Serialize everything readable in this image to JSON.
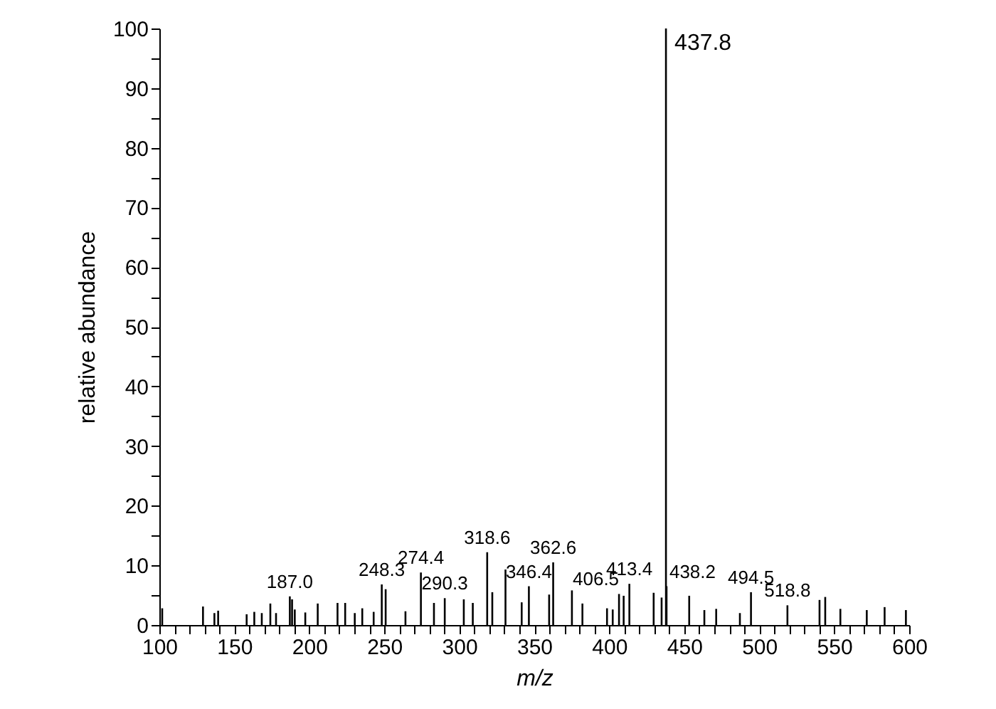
{
  "chart_data": {
    "type": "bar",
    "xlabel": "m/z",
    "ylabel": "relative abundance",
    "color": "#000000",
    "x": [
      101.9,
      129.1,
      136.7,
      139.2,
      158.2,
      163.3,
      168.3,
      174.0,
      177.8,
      187.0,
      188.5,
      190.3,
      197.3,
      205.6,
      218.8,
      223.9,
      230.3,
      235.3,
      242.9,
      248.3,
      250.9,
      264.1,
      274.4,
      283.1,
      290.3,
      303.0,
      309.0,
      318.6,
      322.0,
      330.8,
      341.6,
      346.4,
      359.9,
      362.6,
      375.1,
      382.1,
      398.5,
      402.3,
      406.5,
      409.6,
      413.4,
      429.6,
      434.9,
      437.8,
      438.2,
      453.3,
      463.4,
      471.3,
      487.1,
      494.5,
      518.8,
      540.2,
      544.0,
      554.1,
      571.7,
      583.6,
      597.8
    ],
    "values": [
      2.8,
      3.1,
      2.0,
      2.4,
      1.8,
      2.2,
      2.0,
      3.6,
      2.0,
      4.8,
      4.3,
      2.6,
      2.1,
      3.6,
      3.7,
      3.7,
      2.0,
      2.8,
      2.2,
      6.8,
      6.0,
      2.3,
      8.8,
      3.7,
      4.5,
      4.3,
      3.7,
      12.2,
      5.5,
      9.3,
      3.8,
      6.5,
      5.1,
      10.5,
      5.8,
      3.6,
      2.8,
      2.6,
      5.2,
      4.9,
      6.9,
      5.4,
      4.6,
      100,
      6.5,
      4.9,
      2.5,
      2.7,
      2.0,
      5.5,
      3.3,
      4.2,
      4.7,
      2.7,
      2.5,
      3.0,
      2.5
    ],
    "xlim": [
      100,
      600
    ],
    "xticks": [
      100,
      {
        "value": 110,
        "label": null
      },
      {
        "value": 120,
        "label": null
      },
      {
        "value": 130,
        "label": null
      },
      {
        "value": 140,
        "label": null
      },
      150,
      {
        "value": 160,
        "label": null
      },
      {
        "value": 170,
        "label": null
      },
      {
        "value": 180,
        "label": null
      },
      {
        "value": 190,
        "label": null
      },
      200,
      {
        "value": 210,
        "label": null
      },
      {
        "value": 220,
        "label": null
      },
      {
        "value": 230,
        "label": null
      },
      {
        "value": 240,
        "label": null
      },
      250,
      {
        "value": 260,
        "label": null
      },
      {
        "value": 270,
        "label": null
      },
      {
        "value": 280,
        "label": null
      },
      {
        "value": 290,
        "label": null
      },
      300,
      {
        "value": 310,
        "label": null
      },
      {
        "value": 320,
        "label": null
      },
      {
        "value": 330,
        "label": null
      },
      {
        "value": 340,
        "label": null
      },
      350,
      {
        "value": 360,
        "label": null
      },
      {
        "value": 370,
        "label": null
      },
      {
        "value": 380,
        "label": null
      },
      {
        "value": 390,
        "label": null
      },
      400,
      {
        "value": 410,
        "label": null
      },
      {
        "value": 420,
        "label": null
      },
      {
        "value": 430,
        "label": null
      },
      {
        "value": 440,
        "label": null
      },
      450,
      {
        "value": 460,
        "label": null
      },
      {
        "value": 470,
        "label": null
      },
      {
        "value": 480,
        "label": null
      },
      {
        "value": 490,
        "label": null
      },
      500,
      {
        "value": 510,
        "label": null
      },
      {
        "value": 520,
        "label": null
      },
      {
        "value": 530,
        "label": null
      },
      {
        "value": 540,
        "label": null
      },
      550,
      {
        "value": 560,
        "label": null
      },
      {
        "value": 570,
        "label": null
      },
      {
        "value": 580,
        "label": null
      },
      {
        "value": 590,
        "label": null
      },
      600
    ],
    "ylim": [
      0,
      100
    ],
    "yticks": [
      0,
      {
        "value": 5,
        "label": null
      },
      10,
      {
        "value": 15,
        "label": null
      },
      20,
      {
        "value": 25,
        "label": null
      },
      30,
      {
        "value": 35,
        "label": null
      },
      40,
      {
        "value": 45,
        "label": null
      },
      50,
      {
        "value": 55,
        "label": null
      },
      60,
      {
        "value": 65,
        "label": null
      },
      70,
      {
        "value": 75,
        "label": null
      },
      80,
      {
        "value": 85,
        "label": null
      },
      90,
      {
        "value": 95,
        "label": null
      },
      100
    ],
    "annotations": [
      {
        "text": "187.0",
        "x": 187.0,
        "y": 4.8
      },
      {
        "text": "248.3",
        "x": 248.3,
        "y": 6.8
      },
      {
        "text": "274.4",
        "x": 274.4,
        "y": 8.8
      },
      {
        "text": "290.3",
        "x": 290.3,
        "y": 4.5
      },
      {
        "text": "318.6",
        "x": 318.6,
        "y": 12.2
      },
      {
        "text": "346.4",
        "x": 346.4,
        "y": 6.5
      },
      {
        "text": "362.6",
        "x": 362.6,
        "y": 10.5
      },
      {
        "text": "406.5",
        "x": 406.5,
        "y": 5.2
      },
      {
        "text": "413.4",
        "x": 413.4,
        "y": 6.9
      },
      {
        "text": "437.8",
        "x": 437.8,
        "y": 100
      },
      {
        "text": "438.2",
        "x": 438.2,
        "y": 6.5
      },
      {
        "text": "494.5",
        "x": 494.5,
        "y": 5.5
      },
      {
        "text": "518.8",
        "x": 518.8,
        "y": 3.3
      }
    ]
  }
}
